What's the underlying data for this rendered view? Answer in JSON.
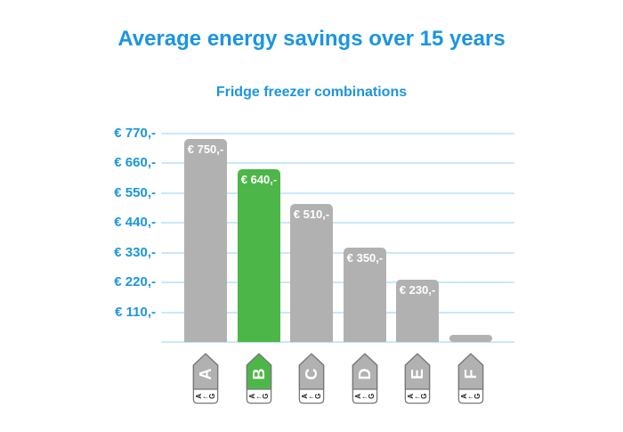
{
  "title": "Average energy savings over 15 years",
  "subtitle": "Fridge freezer combinations",
  "colors": {
    "accent_blue": "#1b95e0",
    "grid_blue": "#c9e8f9",
    "bar_gray": "#b1b1b1",
    "highlight_green": "#4cb748",
    "label_outline_gray": "#777777",
    "bar_value_text": "#ffffff",
    "energy_scale_text": "#222222",
    "background": "#ffffff"
  },
  "chart_data": {
    "type": "bar",
    "title": "Average energy savings over 15 years",
    "subtitle": "Fridge freezer combinations",
    "categories": [
      "A",
      "B",
      "C",
      "D",
      "E",
      "F"
    ],
    "values": [
      750,
      640,
      510,
      350,
      230,
      25
    ],
    "bar_value_labels": [
      "€ 750,-",
      "€ 640,-",
      "€ 510,-",
      "€ 350,-",
      "€ 230,-",
      ""
    ],
    "bar_colors": [
      "#b1b1b1",
      "#4cb748",
      "#b1b1b1",
      "#b1b1b1",
      "#b1b1b1",
      "#b1b1b1"
    ],
    "highlight_index": 1,
    "xlabel": "",
    "ylabel": "",
    "ylim": [
      0,
      770
    ],
    "y_ticks": [
      770,
      660,
      550,
      440,
      330,
      220,
      110
    ],
    "y_tick_labels": [
      "€ 770,-",
      "€ 660,-",
      "€ 550,-",
      "€ 440,-",
      "€ 330,-",
      "€ 220,-",
      "€ 110,-"
    ],
    "grid": true,
    "legend": "none",
    "x_axis_style": "eu-energy-class-labels",
    "energy_scale_badge": {
      "from": "A",
      "arrow": "←",
      "to": "G"
    }
  }
}
